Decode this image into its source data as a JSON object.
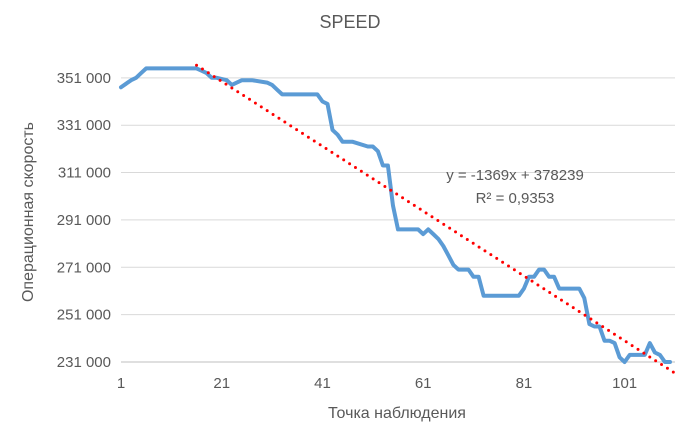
{
  "chart_data": {
    "type": "line",
    "title": "SPEED",
    "xlabel": "Точка наблюдения",
    "ylabel": "Операционная скорость",
    "xlim": [
      1,
      111
    ],
    "ylim": [
      231000,
      356000
    ],
    "x_ticks": [
      1,
      21,
      41,
      61,
      81,
      101
    ],
    "x_tick_labels": [
      "1",
      "21",
      "41",
      "61",
      "81",
      "101"
    ],
    "y_ticks": [
      231000,
      251000,
      271000,
      291000,
      311000,
      331000,
      351000
    ],
    "y_tick_labels": [
      "231 000",
      "251 000",
      "271 000",
      "291 000",
      "311 000",
      "331 000",
      "351 000"
    ],
    "grid": "horizontal",
    "legend": "none",
    "series": [
      {
        "color": "#5B9BD5",
        "x": [
          1,
          3,
          4,
          5,
          6,
          16,
          17,
          18,
          19,
          20,
          22,
          23,
          24,
          25,
          27,
          30,
          31,
          32,
          33,
          34,
          40,
          41,
          42,
          43,
          44,
          45,
          46,
          47,
          50,
          51,
          52,
          53,
          54,
          55,
          56,
          57,
          58,
          60,
          61,
          62,
          63,
          64,
          65,
          66,
          67,
          68,
          69,
          70,
          71,
          72,
          73,
          74,
          79,
          80,
          81,
          82,
          83,
          84,
          85,
          86,
          87,
          88,
          89,
          90,
          91,
          92,
          93,
          94,
          95,
          96,
          97,
          98,
          99,
          100,
          101,
          102,
          105,
          106,
          107,
          108,
          109,
          110
        ],
        "values": [
          347000,
          350000,
          351000,
          353000,
          355000,
          355000,
          354000,
          353000,
          351000,
          351000,
          350000,
          348000,
          349000,
          350000,
          350000,
          349000,
          348000,
          346000,
          344000,
          344000,
          344000,
          341000,
          340000,
          329000,
          327000,
          324000,
          324000,
          324000,
          322000,
          322000,
          320000,
          314000,
          314000,
          297000,
          287000,
          287000,
          287000,
          287000,
          285000,
          287000,
          285000,
          283000,
          280000,
          276000,
          272000,
          270000,
          270000,
          270000,
          267000,
          267000,
          259000,
          259000,
          259000,
          259000,
          262000,
          267000,
          267000,
          270000,
          270000,
          267000,
          267000,
          262000,
          262000,
          262000,
          262000,
          262000,
          258000,
          247000,
          246000,
          246000,
          240000,
          240000,
          239000,
          233000,
          231000,
          234000,
          234000,
          239000,
          235000,
          234000,
          231000,
          231000
        ]
      }
    ],
    "trendline": {
      "type": "linear",
      "color": "#FF0000",
      "slope": -1369,
      "intercept": 378239,
      "x_range": [
        16,
        111
      ],
      "equation_label": "y = -1369x + 378239",
      "r2_label": "R² = 0,9353"
    }
  }
}
